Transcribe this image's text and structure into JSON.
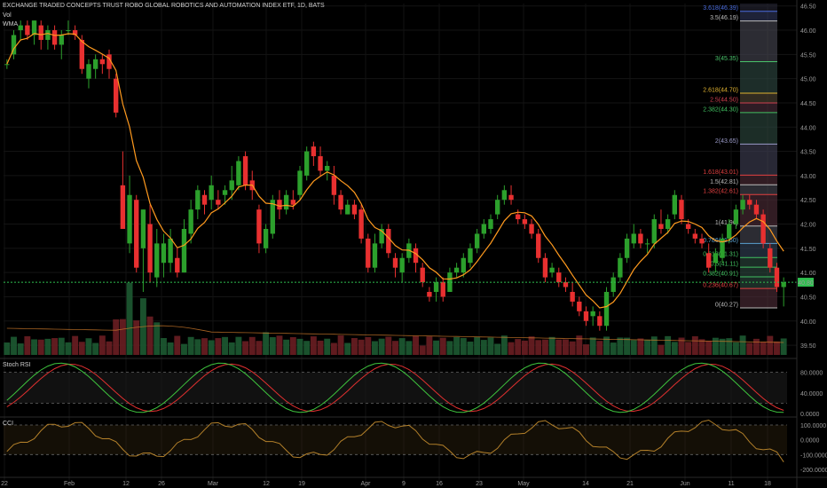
{
  "header": {
    "title": "EXCHANGE TRADED CONCEPTS TRUST ROBO GLOBAL ROBOTICS AND AUTOMATION INDEX ETF, 1D, BATS",
    "vol_label": "Vol",
    "wma_label": "WMA"
  },
  "panes": {
    "stoch_label": "Stoch RSI",
    "cci_label": "CCI"
  },
  "last_price": "40.80",
  "colors": {
    "up": "#2ca02c",
    "down": "#e83030",
    "wma": "#ff9a1e",
    "stoch_k": "#3ec43e",
    "stoch_d": "#e23030",
    "cci": "#b3802a",
    "last_price_line": "#2fbf4f"
  },
  "chart_data": {
    "type": "candlestick",
    "x_tick_labels": [
      "22",
      "Feb",
      "12",
      "26",
      "Mar",
      "12",
      "19",
      "Apr",
      "9",
      "16",
      "23",
      "May",
      "14",
      "21",
      "Jun",
      "11",
      "18"
    ],
    "y_tick_labels": [
      "46.50",
      "46.00",
      "45.50",
      "45.00",
      "44.50",
      "44.00",
      "43.50",
      "43.00",
      "42.50",
      "42.00",
      "41.50",
      "41.00",
      "40.50",
      "40.00",
      "39.50"
    ],
    "ylim": [
      39.3,
      46.55
    ],
    "candles": [
      [
        45.3,
        45.4,
        45.2,
        45.3
      ],
      [
        45.5,
        46.0,
        45.4,
        45.9
      ],
      [
        46.0,
        46.2,
        45.8,
        46.1
      ],
      [
        46.1,
        46.2,
        45.8,
        45.9
      ],
      [
        45.9,
        46.2,
        45.7,
        46.2
      ],
      [
        46.1,
        46.2,
        45.6,
        45.8
      ],
      [
        45.8,
        46.1,
        45.6,
        46.0
      ],
      [
        46.0,
        46.1,
        45.6,
        45.7
      ],
      [
        45.7,
        46.0,
        45.4,
        45.9
      ],
      [
        46.0,
        46.2,
        45.9,
        46.0
      ],
      [
        46.0,
        46.1,
        45.8,
        45.9
      ],
      [
        45.8,
        45.9,
        45.1,
        45.2
      ],
      [
        45.0,
        45.4,
        44.8,
        45.3
      ],
      [
        45.2,
        45.5,
        45.0,
        45.4
      ],
      [
        45.4,
        45.5,
        45.1,
        45.3
      ],
      [
        45.5,
        45.6,
        45.0,
        45.2
      ],
      [
        45.0,
        45.1,
        44.2,
        44.3
      ],
      [
        42.8,
        43.5,
        41.9,
        41.9
      ],
      [
        41.6,
        43.0,
        41.4,
        42.6
      ],
      [
        42.5,
        42.6,
        41.0,
        41.1
      ],
      [
        41.5,
        42.3,
        40.6,
        42.3
      ],
      [
        42.0,
        42.4,
        40.8,
        41.0
      ],
      [
        40.9,
        41.9,
        40.7,
        41.6
      ],
      [
        41.2,
        41.8,
        40.9,
        41.6
      ],
      [
        41.2,
        41.9,
        41.0,
        41.7
      ],
      [
        41.3,
        41.5,
        40.9,
        41.0
      ],
      [
        41.0,
        42.1,
        41.0,
        41.9
      ],
      [
        41.8,
        42.5,
        41.6,
        42.3
      ],
      [
        42.3,
        42.8,
        42.1,
        42.7
      ],
      [
        42.6,
        42.7,
        42.2,
        42.4
      ],
      [
        42.5,
        43.0,
        42.3,
        42.8
      ],
      [
        42.5,
        42.7,
        42.3,
        42.4
      ],
      [
        42.6,
        42.8,
        42.4,
        42.7
      ],
      [
        42.7,
        43.2,
        42.5,
        42.9
      ],
      [
        42.8,
        43.4,
        42.7,
        43.3
      ],
      [
        43.4,
        43.5,
        42.7,
        42.8
      ],
      [
        42.9,
        43.1,
        42.5,
        42.7
      ],
      [
        42.3,
        42.4,
        41.4,
        41.6
      ],
      [
        41.5,
        42.0,
        41.4,
        41.9
      ],
      [
        41.8,
        42.6,
        41.7,
        42.5
      ],
      [
        42.5,
        42.7,
        42.1,
        42.3
      ],
      [
        42.3,
        42.7,
        42.2,
        42.6
      ],
      [
        42.5,
        42.7,
        42.3,
        42.4
      ],
      [
        42.6,
        43.2,
        42.5,
        43.1
      ],
      [
        43.0,
        43.6,
        42.9,
        43.5
      ],
      [
        43.6,
        43.7,
        43.2,
        43.4
      ],
      [
        43.4,
        43.6,
        43.0,
        43.1
      ],
      [
        43.1,
        43.3,
        42.9,
        43.2
      ],
      [
        43.0,
        43.2,
        42.4,
        42.6
      ],
      [
        42.6,
        42.7,
        42.2,
        42.3
      ],
      [
        42.2,
        42.5,
        42.2,
        42.4
      ],
      [
        42.4,
        42.5,
        42.1,
        42.2
      ],
      [
        42.3,
        42.4,
        41.6,
        41.7
      ],
      [
        41.7,
        41.8,
        41.0,
        41.1
      ],
      [
        41.1,
        41.8,
        41.0,
        41.6
      ],
      [
        41.6,
        42.0,
        41.5,
        41.9
      ],
      [
        41.9,
        42.0,
        41.3,
        41.4
      ],
      [
        41.3,
        41.4,
        40.9,
        41.1
      ],
      [
        41.0,
        41.4,
        40.8,
        41.3
      ],
      [
        41.3,
        41.7,
        41.2,
        41.6
      ],
      [
        41.5,
        41.6,
        41.0,
        41.2
      ],
      [
        41.1,
        41.2,
        40.7,
        40.8
      ],
      [
        40.6,
        40.7,
        40.4,
        40.5
      ],
      [
        40.6,
        40.9,
        40.4,
        40.8
      ],
      [
        40.8,
        40.9,
        40.4,
        40.5
      ],
      [
        40.6,
        41.1,
        40.6,
        41.0
      ],
      [
        41.0,
        41.2,
        40.9,
        41.1
      ],
      [
        41.0,
        41.4,
        40.9,
        41.3
      ],
      [
        41.2,
        41.6,
        41.1,
        41.5
      ],
      [
        41.5,
        41.9,
        41.4,
        41.8
      ],
      [
        41.8,
        42.1,
        41.7,
        42.0
      ],
      [
        41.9,
        42.2,
        41.8,
        42.1
      ],
      [
        42.2,
        42.6,
        42.1,
        42.5
      ],
      [
        42.5,
        42.8,
        42.4,
        42.7
      ],
      [
        42.6,
        42.8,
        42.4,
        42.5
      ],
      [
        42.2,
        42.3,
        42.0,
        42.1
      ],
      [
        42.1,
        42.2,
        41.9,
        42.0
      ],
      [
        42.0,
        42.1,
        41.7,
        41.8
      ],
      [
        41.8,
        41.9,
        41.2,
        41.3
      ],
      [
        41.3,
        41.4,
        40.8,
        40.9
      ],
      [
        41.0,
        41.2,
        40.9,
        41.1
      ],
      [
        41.0,
        41.1,
        40.7,
        40.8
      ],
      [
        40.8,
        40.9,
        40.6,
        40.7
      ],
      [
        40.6,
        40.8,
        40.3,
        40.4
      ],
      [
        40.4,
        40.5,
        40.1,
        40.2
      ],
      [
        40.2,
        40.3,
        39.9,
        40.0
      ],
      [
        40.1,
        40.3,
        39.9,
        40.2
      ],
      [
        40.1,
        40.2,
        39.8,
        39.9
      ],
      [
        39.9,
        40.7,
        39.8,
        40.6
      ],
      [
        40.6,
        41.0,
        40.5,
        40.9
      ],
      [
        40.9,
        41.4,
        40.8,
        41.3
      ],
      [
        41.3,
        41.8,
        41.2,
        41.7
      ],
      [
        41.6,
        42.0,
        41.5,
        41.8
      ],
      [
        41.8,
        41.9,
        41.5,
        41.6
      ],
      [
        41.6,
        41.7,
        41.4,
        41.6
      ],
      [
        41.6,
        42.2,
        41.5,
        42.1
      ],
      [
        42.0,
        42.3,
        41.8,
        41.9
      ],
      [
        41.9,
        42.2,
        41.8,
        42.1
      ],
      [
        42.2,
        42.7,
        42.1,
        42.6
      ],
      [
        42.5,
        42.6,
        42.0,
        42.1
      ],
      [
        42.0,
        42.1,
        41.8,
        41.9
      ],
      [
        41.8,
        41.9,
        41.6,
        41.7
      ],
      [
        41.7,
        41.8,
        41.5,
        41.6
      ],
      [
        41.4,
        41.6,
        41.0,
        41.1
      ],
      [
        41.2,
        41.5,
        41.0,
        41.4
      ],
      [
        41.3,
        41.8,
        41.2,
        41.7
      ],
      [
        41.7,
        42.1,
        41.6,
        42.0
      ],
      [
        42.0,
        42.4,
        41.9,
        42.3
      ],
      [
        42.3,
        42.6,
        42.2,
        42.5
      ],
      [
        42.5,
        42.6,
        42.3,
        42.4
      ],
      [
        42.4,
        42.5,
        42.1,
        42.2
      ],
      [
        42.2,
        42.3,
        41.5,
        41.6
      ],
      [
        41.5,
        41.6,
        41.0,
        41.1
      ],
      [
        41.1,
        41.2,
        40.6,
        40.7
      ],
      [
        40.7,
        40.9,
        40.3,
        40.8
      ]
    ],
    "fibonacci": [
      {
        "level": "3.618",
        "price": "46.39",
        "value": 46.39,
        "color": "#4a6de0"
      },
      {
        "level": "3.5",
        "price": "46.19",
        "value": 46.19,
        "color": "#bbbbbb"
      },
      {
        "level": "3",
        "price": "45.35",
        "value": 45.35,
        "color": "#49c26a"
      },
      {
        "level": "2.618",
        "price": "44.70",
        "value": 44.7,
        "color": "#e0b230"
      },
      {
        "level": "2.5",
        "price": "44.50",
        "value": 44.5,
        "color": "#d04050"
      },
      {
        "level": "2.382",
        "price": "44.30",
        "value": 44.3,
        "color": "#40c060"
      },
      {
        "level": "2",
        "price": "43.65",
        "value": 43.65,
        "color": "#9a9ac8"
      },
      {
        "level": "1.618",
        "price": "43.01",
        "value": 43.01,
        "color": "#e04040"
      },
      {
        "level": "1.5",
        "price": "42.81",
        "value": 42.81,
        "color": "#bbbbbb"
      },
      {
        "level": "1.382",
        "price": "42.61",
        "value": 42.61,
        "color": "#e04040"
      },
      {
        "level": "1",
        "price": "41.96",
        "value": 41.96,
        "color": "#bbbbbb"
      },
      {
        "level": "0.786",
        "price": "41.60",
        "value": 41.6,
        "color": "#5aa0d0"
      },
      {
        "level": "0.618",
        "price": "41.31",
        "value": 41.31,
        "color": "#40c060"
      },
      {
        "level": "0.5",
        "price": "41.11",
        "value": 41.11,
        "color": "#40c060"
      },
      {
        "level": "0.382",
        "price": "40.91",
        "value": 40.91,
        "color": "#40c060"
      },
      {
        "level": "0.236",
        "price": "40.67",
        "value": 40.67,
        "color": "#e04040"
      },
      {
        "level": "0",
        "price": "40.27",
        "value": 40.27,
        "color": "#bbbbbb"
      }
    ],
    "stoch_tick_labels": [
      "80.0000",
      "40.0000",
      "0.0000"
    ],
    "cci_tick_labels": [
      "100.0000",
      "0.0000",
      "-100.0000",
      "-200.0000"
    ]
  }
}
